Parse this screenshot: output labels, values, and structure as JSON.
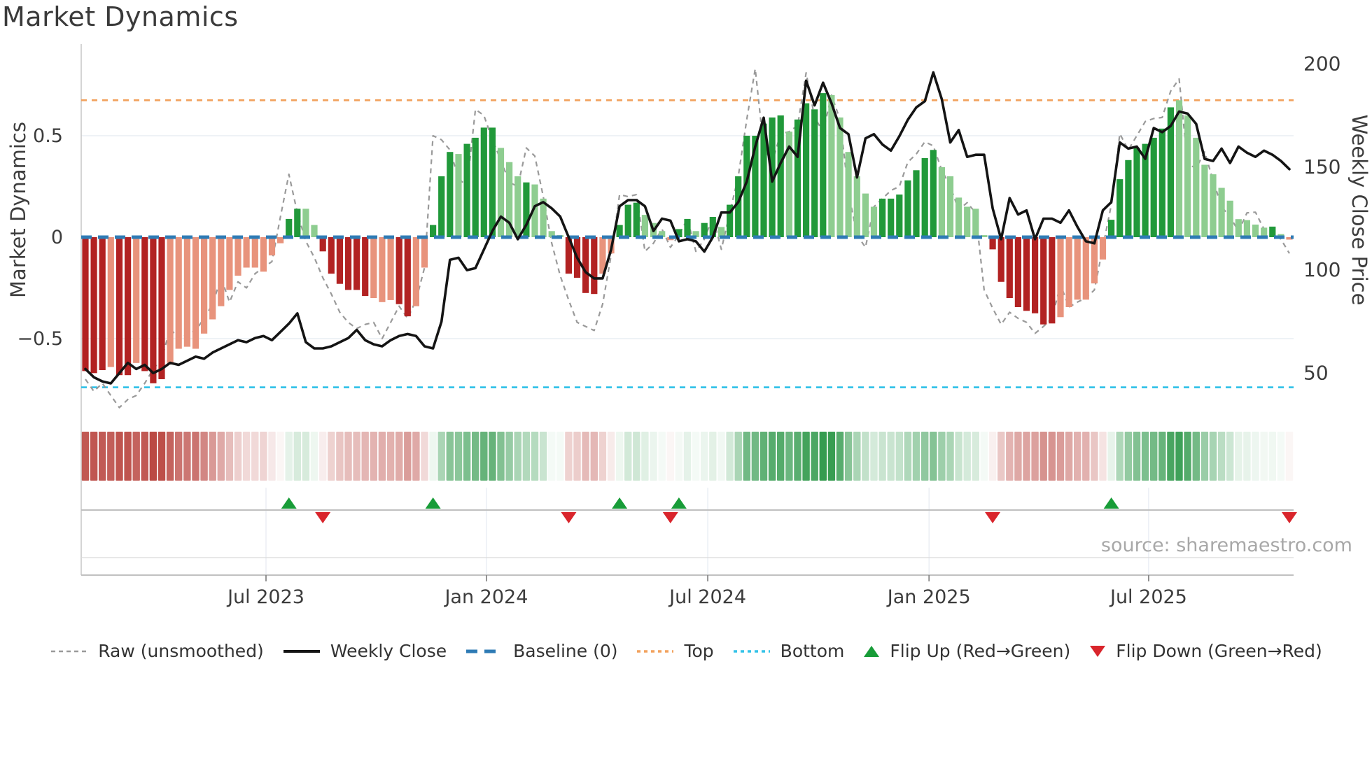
{
  "title": "Market Dynamics",
  "axes": {
    "y_left_label": "Market Dynamics",
    "y_right_label": "Weekly Close Price",
    "y_left_ticks": [
      "0.5",
      "0",
      "−0.5"
    ],
    "y_right_ticks": [
      "200",
      "150",
      "100",
      "50"
    ]
  },
  "source": "source: sharemaestro.com",
  "colors": {
    "bar_dark_red": "#b22222",
    "bar_salmon": "#e8937c",
    "bar_dark_green": "#21993a",
    "bar_light_green": "#8ecd90",
    "baseline": "#2e7bb5",
    "top_line": "#f2a25e",
    "bottom_line": "#35c3e8",
    "raw_line": "#9a9a9a",
    "price_line": "#141414",
    "flip_up": "#189c38",
    "flip_down": "#d9252c",
    "grid": "#e9edf3",
    "spine": "#c9c9c9",
    "text": "#3c3c3c"
  },
  "legend": {
    "items": [
      {
        "icon": "raw-dashed-line-swatch",
        "label": "Raw (unsmoothed)"
      },
      {
        "icon": "weekly-close-line-swatch",
        "label": "Weekly Close"
      },
      {
        "icon": "baseline-dashed-swatch",
        "label": "Baseline (0)"
      },
      {
        "icon": "top-dashed-swatch",
        "label": "Top"
      },
      {
        "icon": "bottom-dashed-swatch",
        "label": "Bottom"
      },
      {
        "icon": "flip-up-triangle-swatch",
        "label": "Flip Up (Red→Green)"
      },
      {
        "icon": "flip-down-triangle-swatch",
        "label": "Flip Down (Green→Red)"
      }
    ]
  },
  "chart_data": {
    "type": "composite",
    "description": "Weekly market-dynamics oscillator bars with heatmap strip, flip markers, raw dashed overlay and weekly close price line on secondary axis",
    "x_ticks": [
      {
        "label": "Jul 2023",
        "week": 21.3
      },
      {
        "label": "Jan 2024",
        "week": 47.3
      },
      {
        "label": "Jul 2024",
        "week": 73.4
      },
      {
        "label": "Jan 2025",
        "week": 99.5
      },
      {
        "label": "Jul 2025",
        "week": 125.4
      }
    ],
    "y_left_tick_values": [
      0.5,
      0,
      -0.5
    ],
    "y_right_tick_values": [
      200,
      150,
      100,
      50
    ],
    "baseline": 0,
    "top_threshold": 0.675,
    "bottom_threshold": -0.74,
    "y_left_range": [
      -0.95,
      0.95
    ],
    "y_right_range": [
      40,
      210
    ],
    "flip_up_weeks": [
      24,
      41,
      63,
      70,
      121
    ],
    "flip_down_weeks": [
      28,
      57,
      69,
      107,
      142
    ],
    "series": {
      "bars": {
        "name": "Market Dynamics (smoothed)",
        "values": [
          -0.66,
          -0.67,
          -0.655,
          -0.64,
          -0.68,
          -0.68,
          -0.62,
          -0.66,
          -0.72,
          -0.7,
          -0.62,
          -0.55,
          -0.54,
          -0.55,
          -0.475,
          -0.405,
          -0.34,
          -0.26,
          -0.19,
          -0.15,
          -0.15,
          -0.17,
          -0.09,
          -0.03,
          0.09,
          0.14,
          0.14,
          0.06,
          -0.07,
          -0.18,
          -0.23,
          -0.26,
          -0.26,
          -0.29,
          -0.3,
          -0.32,
          -0.31,
          -0.33,
          -0.39,
          -0.34,
          -0.15,
          0.06,
          0.3,
          0.42,
          0.41,
          0.46,
          0.49,
          0.54,
          0.54,
          0.44,
          0.37,
          0.3,
          0.27,
          0.26,
          0.19,
          0.03,
          0.01,
          -0.18,
          -0.2,
          -0.275,
          -0.28,
          -0.18,
          -0.08,
          0.06,
          0.16,
          0.17,
          0.11,
          0.07,
          0.03,
          -0.015,
          0.04,
          0.09,
          0.03,
          0.07,
          0.1,
          0.05,
          0.16,
          0.3,
          0.5,
          0.5,
          0.56,
          0.59,
          0.6,
          0.52,
          0.58,
          0.66,
          0.63,
          0.71,
          0.7,
          0.59,
          0.42,
          0.3,
          0.215,
          0.15,
          0.19,
          0.19,
          0.21,
          0.28,
          0.33,
          0.39,
          0.43,
          0.345,
          0.3,
          0.195,
          0.15,
          0.14,
          0.01,
          -0.06,
          -0.22,
          -0.3,
          -0.345,
          -0.363,
          -0.375,
          -0.43,
          -0.425,
          -0.394,
          -0.345,
          -0.308,
          -0.308,
          -0.228,
          -0.11,
          0.086,
          0.286,
          0.38,
          0.44,
          0.46,
          0.49,
          0.535,
          0.64,
          0.675,
          0.6,
          0.49,
          0.357,
          0.31,
          0.243,
          0.18,
          0.089,
          0.084,
          0.062,
          0.047,
          0.052,
          0.015,
          -0.012
        ],
        "shades": [
          "dr",
          "dr",
          "dr",
          "sm",
          "dr",
          "dr",
          "sm",
          "dr",
          "dr",
          "dr",
          "sm",
          "sm",
          "sm",
          "sm",
          "sm",
          "sm",
          "sm",
          "sm",
          "sm",
          "sm",
          "sm",
          "sm",
          "sm",
          "sm",
          "dg",
          "dg",
          "lg",
          "lg",
          "dr",
          "dr",
          "dr",
          "dr",
          "dr",
          "dr",
          "sm",
          "sm",
          "sm",
          "dr",
          "dr",
          "sm",
          "sm",
          "dg",
          "dg",
          "dg",
          "lg",
          "dg",
          "dg",
          "dg",
          "dg",
          "lg",
          "lg",
          "lg",
          "dg",
          "lg",
          "lg",
          "lg",
          "lg",
          "dr",
          "dr",
          "dr",
          "dr",
          "sm",
          "sm",
          "dg",
          "dg",
          "dg",
          "lg",
          "lg",
          "lg",
          "sm",
          "dg",
          "dg",
          "lg",
          "dg",
          "dg",
          "lg",
          "dg",
          "dg",
          "dg",
          "dg",
          "dg",
          "dg",
          "dg",
          "lg",
          "dg",
          "dg",
          "dg",
          "dg",
          "lg",
          "lg",
          "lg",
          "lg",
          "lg",
          "lg",
          "dg",
          "dg",
          "dg",
          "dg",
          "dg",
          "dg",
          "dg",
          "lg",
          "lg",
          "lg",
          "lg",
          "lg",
          "lg",
          "dr",
          "dr",
          "dr",
          "dr",
          "dr",
          "dr",
          "dr",
          "dr",
          "sm",
          "sm",
          "sm",
          "sm",
          "sm",
          "sm",
          "dg",
          "dg",
          "dg",
          "dg",
          "dg",
          "dg",
          "dg",
          "dg",
          "lg",
          "lg",
          "lg",
          "lg",
          "lg",
          "lg",
          "lg",
          "lg",
          "lg",
          "lg",
          "lg",
          "dg",
          "lg",
          "sm"
        ]
      },
      "raw": {
        "name": "Raw (unsmoothed)",
        "values": [
          -0.7,
          -0.76,
          -0.72,
          -0.78,
          -0.84,
          -0.8,
          -0.78,
          -0.72,
          -0.65,
          -0.6,
          -0.45,
          -0.5,
          -0.48,
          -0.46,
          -0.4,
          -0.33,
          -0.2,
          -0.32,
          -0.22,
          -0.25,
          -0.18,
          -0.15,
          -0.12,
          0.1,
          0.31,
          0.12,
          -0.02,
          -0.1,
          -0.2,
          -0.28,
          -0.37,
          -0.42,
          -0.45,
          -0.43,
          -0.42,
          -0.5,
          -0.42,
          -0.34,
          -0.4,
          -0.31,
          -0.15,
          0.5,
          0.48,
          0.43,
          0.29,
          0.25,
          0.63,
          0.6,
          0.48,
          0.38,
          0.27,
          0.25,
          0.44,
          0.4,
          0.2,
          -0.03,
          -0.19,
          -0.31,
          -0.42,
          -0.44,
          -0.46,
          -0.33,
          -0.09,
          0.21,
          0.2,
          0.21,
          -0.07,
          -0.03,
          0.04,
          -0.05,
          0.01,
          0.09,
          -0.07,
          -0.01,
          0.1,
          -0.06,
          0.12,
          0.3,
          0.58,
          0.83,
          0.44,
          0.37,
          0.51,
          0.52,
          0.55,
          0.81,
          0.59,
          0.52,
          0.7,
          0.58,
          0.22,
          0.01,
          -0.05,
          0.15,
          0.19,
          0.23,
          0.25,
          0.37,
          0.41,
          0.47,
          0.45,
          0.33,
          0.25,
          0.135,
          0.17,
          0.12,
          -0.26,
          -0.35,
          -0.43,
          -0.37,
          -0.4,
          -0.42,
          -0.474,
          -0.44,
          -0.4,
          -0.234,
          -0.345,
          -0.32,
          -0.3,
          -0.26,
          -0.05,
          0.16,
          0.51,
          0.43,
          0.5,
          0.57,
          0.585,
          0.59,
          0.72,
          0.78,
          0.36,
          0.34,
          0.42,
          0.28,
          0.15,
          0.1,
          0.03,
          0.12,
          0.123,
          0.04,
          0.025,
          -0.01,
          -0.08
        ]
      },
      "price": {
        "name": "Weekly Close",
        "values": [
          52,
          48,
          46,
          45,
          50,
          55,
          52,
          54,
          50,
          52,
          55,
          54,
          56,
          58,
          57,
          60,
          62,
          64,
          66,
          65,
          67,
          68,
          66,
          70,
          74,
          79,
          65,
          62,
          62,
          63,
          65,
          67,
          71,
          66,
          64,
          63,
          66,
          68,
          69,
          68,
          63,
          62,
          75,
          105,
          106,
          100,
          101,
          110,
          119,
          126,
          123,
          115,
          122,
          131,
          133,
          130,
          126,
          116,
          106,
          99,
          96,
          96,
          110,
          131,
          134,
          134,
          131,
          119,
          125,
          124,
          114,
          115,
          114,
          109,
          116,
          128,
          128,
          133,
          143,
          160,
          174,
          143,
          152,
          160,
          155,
          192,
          180,
          191,
          181,
          169,
          166,
          145,
          164,
          166,
          161,
          158,
          165,
          173,
          179,
          182,
          196,
          183,
          162,
          168,
          155,
          156,
          156,
          130,
          115,
          135,
          127,
          129,
          115,
          125,
          125,
          123,
          129,
          121,
          114,
          113,
          129,
          133,
          162,
          159,
          160,
          154,
          169,
          167,
          170,
          177,
          176,
          171,
          154,
          153,
          159,
          152,
          160,
          157,
          155,
          158,
          156,
          153,
          149
        ]
      }
    }
  }
}
